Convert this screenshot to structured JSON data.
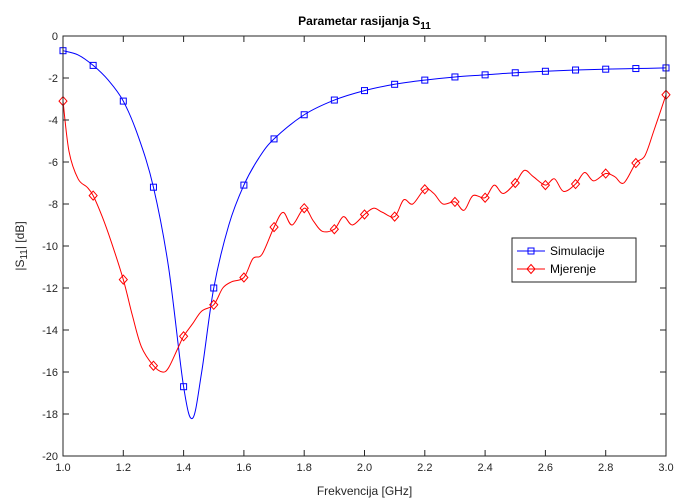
{
  "chart_data": {
    "type": "line",
    "title": "Parametar rasijanja S",
    "title_subscript": "11",
    "xlabel": "Frekvencija [GHz]",
    "ylabel_prefix": "|S",
    "ylabel_subscript": "11",
    "ylabel_suffix": "| [dB]",
    "xlim": [
      1.0,
      3.0
    ],
    "ylim": [
      -20,
      0
    ],
    "xticks": [
      1.0,
      1.2,
      1.4,
      1.6,
      1.8,
      2.0,
      2.2,
      2.4,
      2.6,
      2.8,
      3.0
    ],
    "xtick_labels": [
      "1.0",
      "1.2",
      "1.4",
      "1.6",
      "1.8",
      "2.0",
      "2.2",
      "2.4",
      "2.6",
      "2.8",
      "3.0"
    ],
    "yticks": [
      0,
      -2,
      -4,
      -6,
      -8,
      -10,
      -12,
      -14,
      -16,
      -18,
      -20
    ],
    "ytick_labels": [
      "0",
      "-2",
      "-4",
      "-6",
      "-8",
      "-10",
      "-12",
      "-14",
      "-16",
      "-18",
      "-20"
    ],
    "grid": false,
    "legend_position": "center-right",
    "series": [
      {
        "name": "Simulacije",
        "color": "#0000ff",
        "marker": "square",
        "x": [
          1.0,
          1.05,
          1.1,
          1.15,
          1.2,
          1.25,
          1.3,
          1.35,
          1.4,
          1.43,
          1.46,
          1.5,
          1.55,
          1.6,
          1.65,
          1.7,
          1.8,
          1.9,
          2.0,
          2.1,
          2.2,
          2.3,
          2.4,
          2.5,
          2.6,
          2.7,
          2.8,
          2.9,
          3.0
        ],
        "y": [
          -0.7,
          -0.9,
          -1.4,
          -2.1,
          -3.1,
          -4.8,
          -7.2,
          -11.0,
          -16.7,
          -18.2,
          -16.0,
          -12.0,
          -9.0,
          -7.1,
          -5.8,
          -4.9,
          -3.75,
          -3.05,
          -2.6,
          -2.3,
          -2.1,
          -1.95,
          -1.85,
          -1.75,
          -1.68,
          -1.62,
          -1.58,
          -1.55,
          -1.52
        ],
        "marker_x": [
          1.0,
          1.1,
          1.2,
          1.3,
          1.4,
          1.5,
          1.6,
          1.7,
          1.8,
          1.9,
          2.0,
          2.1,
          2.2,
          2.3,
          2.4,
          2.5,
          2.6,
          2.7,
          2.8,
          2.9,
          3.0
        ],
        "marker_y": [
          -0.7,
          -1.4,
          -3.1,
          -7.2,
          -16.7,
          -12.0,
          -7.1,
          -4.9,
          -3.75,
          -3.05,
          -2.6,
          -2.3,
          -2.1,
          -1.95,
          -1.85,
          -1.75,
          -1.68,
          -1.62,
          -1.58,
          -1.55,
          -1.52
        ]
      },
      {
        "name": "Mjerenje",
        "color": "#ff0000",
        "marker": "diamond",
        "x": [
          1.0,
          1.02,
          1.05,
          1.08,
          1.1,
          1.13,
          1.16,
          1.2,
          1.23,
          1.26,
          1.3,
          1.33,
          1.35,
          1.38,
          1.4,
          1.43,
          1.46,
          1.5,
          1.53,
          1.56,
          1.6,
          1.63,
          1.66,
          1.7,
          1.73,
          1.76,
          1.8,
          1.83,
          1.86,
          1.9,
          1.93,
          1.96,
          2.0,
          2.03,
          2.06,
          2.1,
          2.13,
          2.16,
          2.2,
          2.23,
          2.26,
          2.3,
          2.33,
          2.36,
          2.4,
          2.43,
          2.46,
          2.5,
          2.53,
          2.56,
          2.6,
          2.63,
          2.66,
          2.7,
          2.73,
          2.76,
          2.8,
          2.83,
          2.86,
          2.9,
          2.93,
          2.96,
          3.0
        ],
        "y": [
          -3.1,
          -5.5,
          -6.8,
          -7.2,
          -7.6,
          -8.6,
          -9.8,
          -11.6,
          -13.3,
          -14.8,
          -15.7,
          -16.0,
          -15.8,
          -14.9,
          -14.3,
          -13.7,
          -13.1,
          -12.8,
          -12.0,
          -11.7,
          -11.5,
          -10.6,
          -10.4,
          -9.1,
          -8.4,
          -9.0,
          -8.2,
          -8.8,
          -9.3,
          -9.2,
          -8.6,
          -9.0,
          -8.5,
          -8.2,
          -8.4,
          -8.6,
          -7.8,
          -8.0,
          -7.3,
          -7.5,
          -8.0,
          -7.9,
          -8.3,
          -7.6,
          -7.7,
          -7.1,
          -7.5,
          -7.0,
          -6.4,
          -6.7,
          -7.1,
          -6.8,
          -7.4,
          -7.05,
          -6.5,
          -6.9,
          -6.55,
          -6.7,
          -7.0,
          -6.05,
          -5.7,
          -4.5,
          -2.8
        ],
        "marker_x": [
          1.0,
          1.1,
          1.2,
          1.3,
          1.4,
          1.5,
          1.6,
          1.7,
          1.8,
          1.9,
          2.0,
          2.1,
          2.2,
          2.3,
          2.4,
          2.5,
          2.6,
          2.7,
          2.8,
          2.9,
          3.0
        ],
        "marker_y": [
          -3.1,
          -7.6,
          -11.6,
          -15.7,
          -14.3,
          -12.8,
          -11.5,
          -9.1,
          -8.2,
          -9.2,
          -8.5,
          -8.6,
          -7.3,
          -7.9,
          -7.7,
          -7.0,
          -7.1,
          -7.05,
          -6.55,
          -6.05,
          -2.8
        ]
      }
    ]
  }
}
